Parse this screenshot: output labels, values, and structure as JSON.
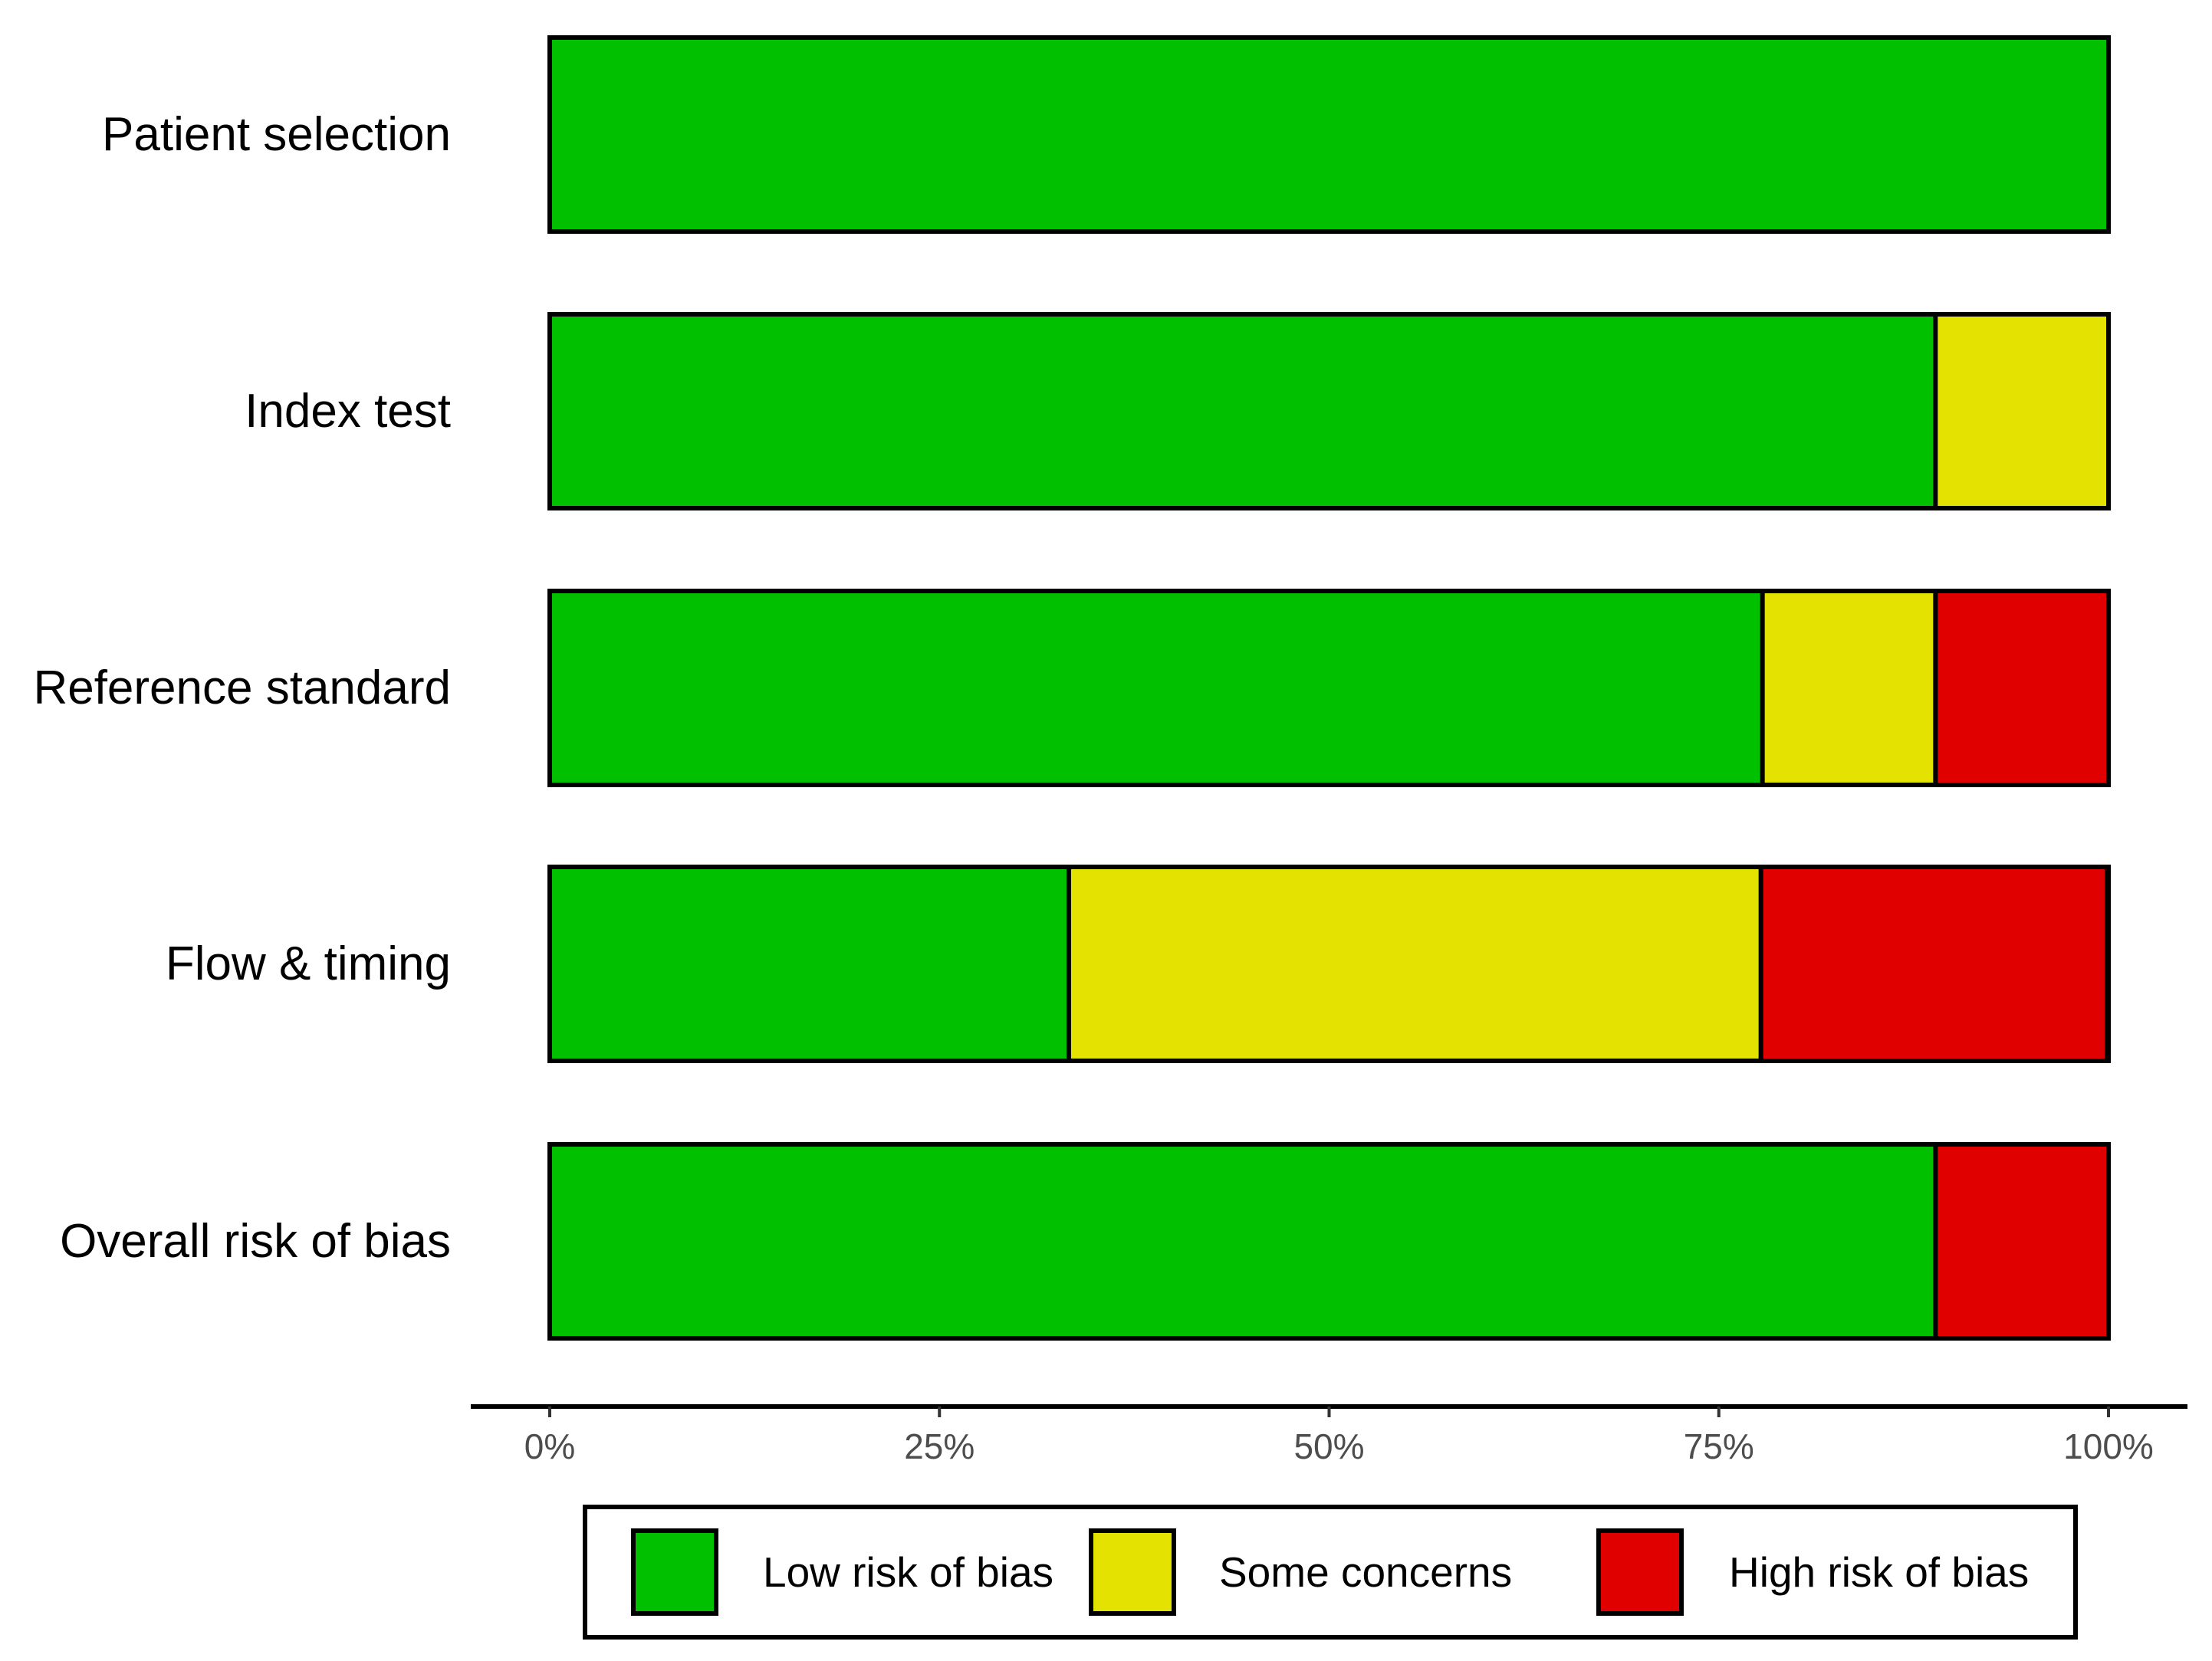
{
  "chart_data": {
    "type": "bar",
    "orientation": "horizontal",
    "stacked": true,
    "title": "",
    "xlabel": "",
    "ylabel": "",
    "xlim": [
      0,
      100
    ],
    "grid": false,
    "legend_position": "bottom",
    "categories": [
      "Patient selection",
      "Index test",
      "Reference standard",
      "Flow & timing",
      "Overall risk of bias"
    ],
    "series": [
      {
        "name": "Low risk of bias",
        "color": "#00c000",
        "values": [
          100,
          88.9,
          77.8,
          33.3,
          88.9
        ]
      },
      {
        "name": "Some concerns",
        "color": "#e3e200",
        "values": [
          0,
          11.1,
          11.1,
          44.4,
          0
        ]
      },
      {
        "name": "High risk of bias",
        "color": "#e00000",
        "values": [
          0,
          0,
          11.1,
          22.2,
          11.1
        ]
      }
    ],
    "x_ticks": [
      {
        "value": 0,
        "label": "0%"
      },
      {
        "value": 25,
        "label": "25%"
      },
      {
        "value": 50,
        "label": "50%"
      },
      {
        "value": 75,
        "label": "75%"
      },
      {
        "value": 100,
        "label": "100%"
      }
    ]
  }
}
